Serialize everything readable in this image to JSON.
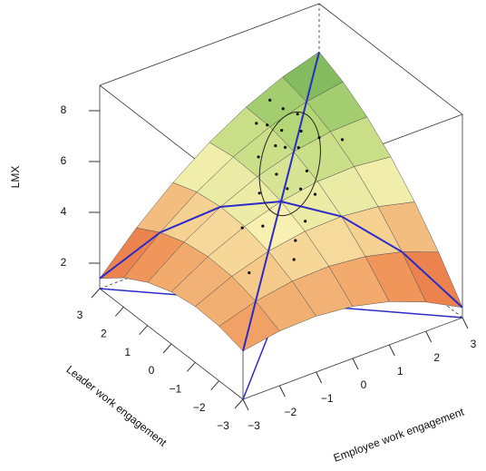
{
  "chart_data": {
    "type": "surface3d",
    "zlabel": "LMX",
    "ylabel": "Leader work engagement",
    "xlabel": "Employee work engagement",
    "x": [
      -3,
      -2,
      -1,
      0,
      1,
      2,
      3
    ],
    "y": [
      -3,
      -2,
      -1,
      0,
      1,
      2,
      3
    ],
    "z": [
      [
        2.9,
        3.15,
        3.2,
        3.05,
        2.7,
        2.15,
        1.4
      ],
      [
        3.15,
        3.6,
        3.85,
        3.9,
        3.75,
        3.4,
        2.85
      ],
      [
        3.2,
        3.85,
        4.3,
        4.55,
        4.6,
        4.45,
        4.1
      ],
      [
        3.05,
        3.9,
        4.55,
        5,
        5.25,
        5.3,
        5.15
      ],
      [
        2.7,
        3.75,
        4.6,
        5.25,
        5.7,
        5.95,
        6
      ],
      [
        2.15,
        3.4,
        4.45,
        5.3,
        5.95,
        6.4,
        6.65
      ],
      [
        1.4,
        2.85,
        4.1,
        5.15,
        6,
        6.65,
        7.1
      ]
    ],
    "points": {
      "x": [
        0.2,
        0.5,
        0.8,
        1.0,
        0.3,
        -0.2,
        0.6,
        1.2,
        0.9,
        0.4,
        0.1,
        -0.5,
        0.7,
        1.5,
        1.1,
        0.0,
        -0.8,
        0.5,
        1.3,
        0.8,
        -0.3,
        2.0,
        0.6,
        1.0,
        -1.2
      ],
      "y": [
        0.5,
        1.0,
        1.2,
        0.8,
        0.2,
        0.6,
        1.5,
        1.0,
        0.3,
        -0.4,
        1.1,
        0.0,
        0.9,
        0.7,
        1.6,
        -0.6,
        0.4,
        1.8,
        1.3,
        -0.2,
        -1.0,
        0.5,
        0.1,
        2.0,
        -0.5
      ],
      "z": [
        5.6,
        6.2,
        6.5,
        6.0,
        5.2,
        5.0,
        6.6,
        6.4,
        5.5,
        4.3,
        5.9,
        4.3,
        6.1,
        6.2,
        6.9,
        3.9,
        4.1,
        6.5,
        6.8,
        5.0,
        3.6,
        6.0,
        5.1,
        7.0,
        3.2
      ]
    },
    "xlim": [
      -3,
      3
    ],
    "ylim": [
      -3,
      3
    ],
    "zlim": [
      1,
      9
    ],
    "xticks": [
      {
        "value": -3,
        "label": "−3"
      },
      {
        "value": -2,
        "label": "−2"
      },
      {
        "value": -1,
        "label": "−1"
      },
      0,
      1,
      2,
      3
    ],
    "yticks": [
      {
        "value": -3,
        "label": "−3"
      },
      {
        "value": -2,
        "label": "−2"
      },
      {
        "value": -1,
        "label": "−1"
      },
      0,
      1,
      2,
      3
    ],
    "zticks": [
      2,
      4,
      6,
      8
    ],
    "line_color": "#2b2bc8",
    "point_color": "#111111"
  }
}
